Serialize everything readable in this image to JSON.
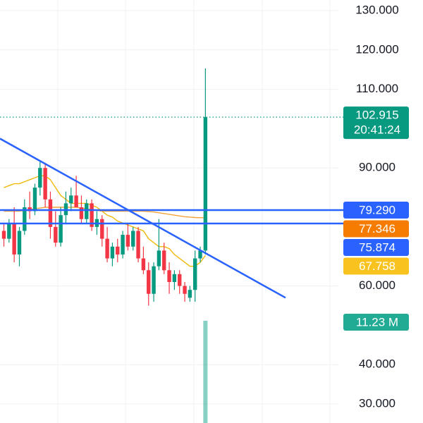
{
  "chart_data": {
    "type": "candlestick",
    "open": [
      74,
      72,
      76,
      68,
      74,
      80,
      79,
      85,
      90,
      82,
      75,
      71,
      78,
      81,
      83,
      80,
      77,
      81,
      75,
      77,
      72,
      67,
      70,
      68,
      73,
      70,
      74,
      67,
      64,
      58,
      65,
      69,
      64,
      61,
      63,
      60,
      57,
      59,
      67,
      69
    ],
    "high": [
      76,
      77,
      80,
      75,
      82,
      84,
      86,
      92,
      91,
      84,
      79,
      80,
      84,
      85,
      88,
      83,
      82,
      82,
      79,
      78,
      75,
      71,
      72,
      74,
      76,
      75,
      75,
      70,
      66,
      66,
      77,
      71,
      66,
      64,
      64,
      61,
      60,
      69,
      70,
      115.3
    ],
    "low": [
      70,
      71,
      66,
      65,
      73,
      77,
      78,
      83,
      80,
      72,
      70,
      70,
      76,
      79,
      80,
      76,
      76,
      74,
      73,
      70,
      66,
      65,
      66,
      67,
      69,
      69,
      66,
      63,
      55,
      56,
      64,
      63,
      58,
      59,
      58,
      56,
      56,
      56,
      66,
      68
    ],
    "close": [
      72,
      76,
      68,
      74,
      80,
      79,
      85,
      90,
      82,
      75,
      71,
      78,
      81,
      83,
      80,
      77,
      81,
      75,
      77,
      72,
      67,
      70,
      68,
      73,
      70,
      74,
      67,
      64,
      58,
      65,
      69,
      64,
      61,
      63,
      60,
      58,
      59,
      67,
      69,
      102.915
    ],
    "up_color": "#089981",
    "down_color": "#f23645",
    "ma": [
      {
        "color": "#f0b90b",
        "values": [
          85,
          85.5,
          86,
          86,
          86.5,
          87,
          87.5,
          88,
          88,
          87,
          85,
          83,
          82,
          81,
          81,
          81,
          81,
          80.5,
          80,
          79,
          78,
          77.5,
          76.5,
          76,
          75.5,
          75,
          74.5,
          74,
          72,
          71,
          70,
          70,
          69.5,
          68,
          67,
          66,
          65,
          65,
          66,
          67.758
        ]
      },
      {
        "color": "#f5a33a",
        "values": [
          79,
          79,
          79,
          79,
          79.2,
          79.4,
          79.6,
          79.8,
          80,
          80,
          80,
          80,
          80,
          80,
          80,
          79.8,
          79.6,
          79.4,
          79.2,
          79,
          79,
          79,
          79,
          79,
          79,
          79,
          79,
          79,
          78.9,
          78.8,
          78.6,
          78.4,
          78.2,
          78,
          77.8,
          77.6,
          77.5,
          77.4,
          77.35,
          77.346
        ]
      }
    ],
    "trend_line": {
      "color": "#2962ff",
      "start": 96.9,
      "end": 68.35
    },
    "ylim": [
      25.16,
      132.69
    ],
    "yticks": [
      {
        "value": 130,
        "label": "130.000"
      },
      {
        "value": 120,
        "label": "120.000"
      },
      {
        "value": 110,
        "label": "110.000"
      },
      {
        "value": 90,
        "label": "90.000"
      },
      {
        "value": 60,
        "label": "60.000"
      },
      {
        "value": 40,
        "label": "40.000"
      },
      {
        "value": 30,
        "label": "30.000"
      }
    ],
    "price_labels": [
      {
        "value": 79.29,
        "label": "79.290",
        "color": "#2962ff",
        "line": true
      },
      {
        "value": 77.346,
        "label": "77.346",
        "color": "#f57c00",
        "line": false
      },
      {
        "value": 75.874,
        "label": "75.874",
        "color": "#2962ff",
        "line": true
      },
      {
        "value": 67.758,
        "label": "67.758",
        "color": "#f9c31f",
        "line": false
      }
    ],
    "last_price": {
      "value": 102.915,
      "label": "102.915",
      "time": "20:41:24",
      "color": "#089981"
    },
    "volume": {
      "value": 11230000,
      "label": "11.23 M",
      "color": "#22ab94"
    }
  }
}
